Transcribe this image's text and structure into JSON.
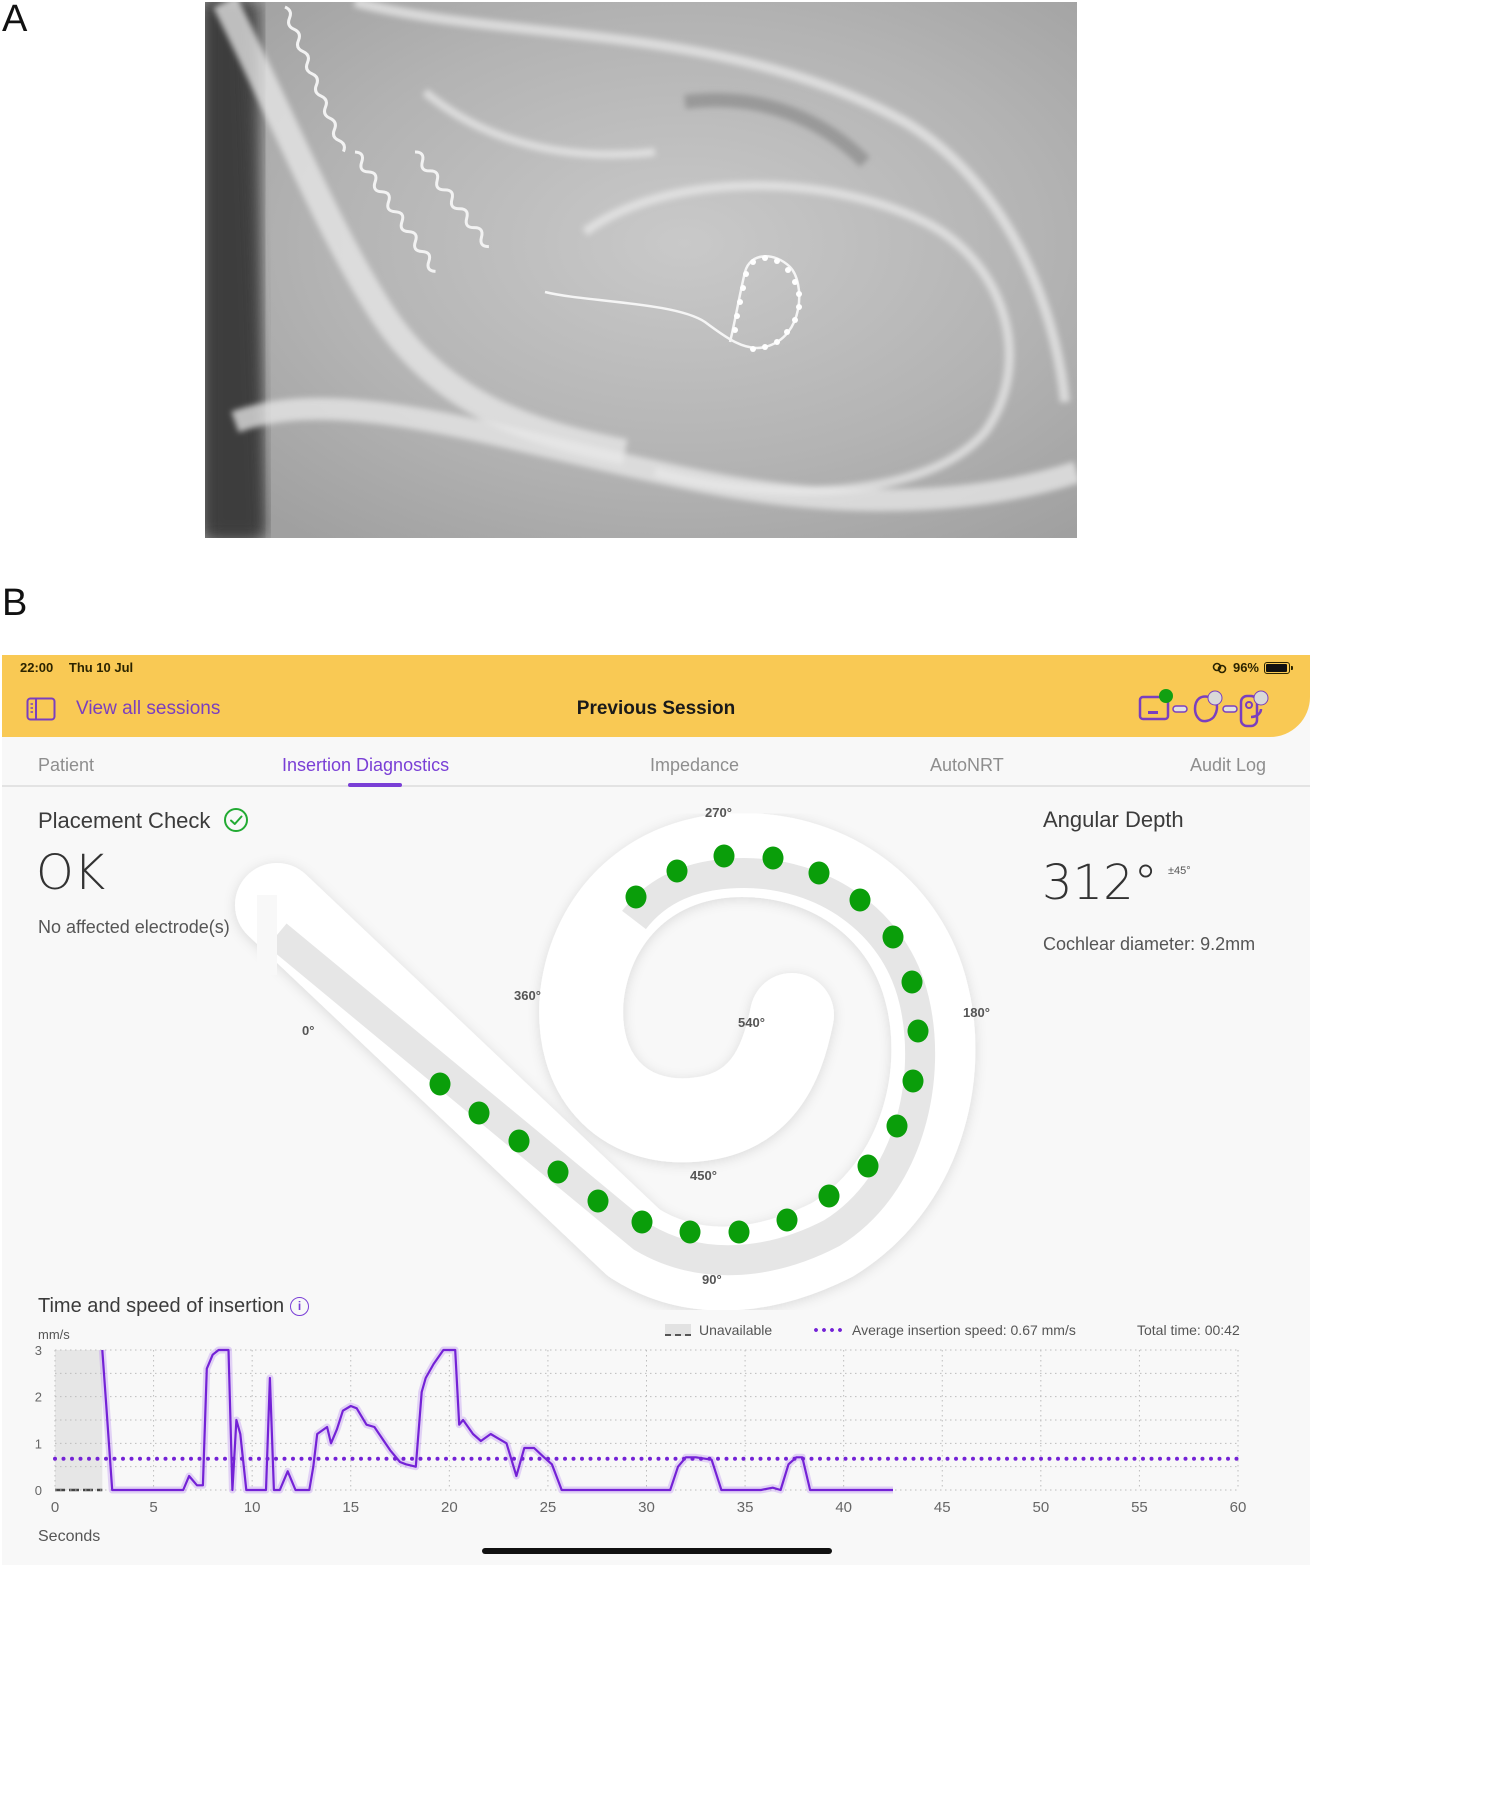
{
  "figure": {
    "panel_a_label": "A",
    "panel_b_label": "B",
    "panel_a_image": "cochlear-implant-xray-radiograph"
  },
  "status_bar": {
    "time": "22:00",
    "date": "Thu 10 Jul",
    "battery_percent": "96%",
    "battery_fill": 0.96,
    "icons": [
      "link-icon",
      "battery-icon"
    ]
  },
  "header": {
    "back_label": "View all sessions",
    "back_icon": "sidebar-toggle-icon",
    "title": "Previous Session",
    "device_chain": [
      {
        "name": "processor",
        "status": "connected",
        "status_color": "#12a012"
      },
      {
        "name": "implant",
        "status": "inactive",
        "status_color": "#d9d9d9"
      },
      {
        "name": "sound-processor-coil",
        "status": "inactive",
        "status_color": "#d9d9d9"
      }
    ],
    "background_color": "#f9c954",
    "accent_color": "#7a3fbf"
  },
  "tabs": [
    {
      "label": "Patient",
      "active": false
    },
    {
      "label": "Insertion Diagnostics",
      "active": true
    },
    {
      "label": "Impedance",
      "active": false
    },
    {
      "label": "AutoNRT",
      "active": false
    },
    {
      "label": "Audit Log",
      "active": false
    }
  ],
  "placement_check": {
    "title": "Placement Check",
    "status_icon": "check-circle-icon",
    "status_color": "#22aa33",
    "value": "OK",
    "detail": "No affected electrode(s)"
  },
  "angular_depth": {
    "title": "Angular Depth",
    "value": "312°",
    "tolerance": "±45°",
    "cochlear_diameter": "Cochlear diameter: 9.2mm"
  },
  "cochlea_diagram": {
    "angle_labels": {
      "a0": "0°",
      "a90": "90°",
      "a180": "180°",
      "a270": "270°",
      "a360": "360°",
      "a450": "450°",
      "a540": "540°"
    },
    "electrode_count": 22,
    "electrode_color": "#0a9e0a",
    "track_color": "#e6e6e6"
  },
  "insertion_chart": {
    "title": "Time and speed of insertion",
    "info_icon": "info-icon",
    "y_unit": "mm/s",
    "x_label": "Seconds",
    "legend_unavailable": "Unavailable",
    "legend_average": "Average insertion speed: 0.67 mm/s",
    "total_time": "Total time: 00:42",
    "line_color": "#7422d6"
  },
  "chart_data": {
    "type": "line",
    "title": "Time and speed of insertion",
    "xlabel": "Seconds",
    "ylabel": "mm/s",
    "xlim": [
      0,
      60
    ],
    "ylim": [
      0,
      3
    ],
    "x_ticks": [
      0,
      5,
      10,
      15,
      20,
      25,
      30,
      35,
      40,
      45,
      50,
      55,
      60
    ],
    "y_ticks": [
      0,
      1,
      2,
      3
    ],
    "grid": true,
    "grid_style": "dotted",
    "legend": [
      "Unavailable",
      "Average insertion speed: 0.67 mm/s"
    ],
    "legend_position": "top-right",
    "annotations": [
      "Total time: 00:42"
    ],
    "unavailable_region": [
      0,
      2.4
    ],
    "series": [
      {
        "name": "Insertion speed",
        "x": [
          2.4,
          2.6,
          2.9,
          6.5,
          6.8,
          7.2,
          7.5,
          7.7,
          8.0,
          8.3,
          8.8,
          9.0,
          9.2,
          9.4,
          9.7,
          9.9,
          10.2,
          10.7,
          10.9,
          11.1,
          11.4,
          11.8,
          12.2,
          12.9,
          13.1,
          13.3,
          13.8,
          14.0,
          14.3,
          14.6,
          15.0,
          15.3,
          15.8,
          16.2,
          17.0,
          17.5,
          17.8,
          18.3,
          18.6,
          18.8,
          19.2,
          19.7,
          20.3,
          20.5,
          20.7,
          21.2,
          21.6,
          22.1,
          22.5,
          22.9,
          23.4,
          23.8,
          24.3,
          24.8,
          25.2,
          25.7,
          26.0,
          26.5,
          30.0,
          31.2,
          31.6,
          32.0,
          32.5,
          33.3,
          33.8,
          34.2,
          35.8,
          36.4,
          36.8,
          37.2,
          37.6,
          37.9,
          38.3,
          42.5
        ],
        "y": [
          3.0,
          1.8,
          0.0,
          0.0,
          0.3,
          0.1,
          0.1,
          2.6,
          2.9,
          3.0,
          3.0,
          0.0,
          1.5,
          1.2,
          0.0,
          0.0,
          0.0,
          0.0,
          2.4,
          0.0,
          0.0,
          0.4,
          0.0,
          0.0,
          0.5,
          1.2,
          1.35,
          1.0,
          1.3,
          1.7,
          1.8,
          1.75,
          1.4,
          1.35,
          0.85,
          0.6,
          0.55,
          0.5,
          2.1,
          2.4,
          2.7,
          3.0,
          3.0,
          1.4,
          1.5,
          1.2,
          1.05,
          1.2,
          1.1,
          1.0,
          0.3,
          0.9,
          0.9,
          0.7,
          0.55,
          0.0,
          0.0,
          0.0,
          0.0,
          0.0,
          0.5,
          0.7,
          0.7,
          0.65,
          0.0,
          0.0,
          0.0,
          0.05,
          0.0,
          0.55,
          0.7,
          0.7,
          0.0,
          0.0
        ]
      },
      {
        "name": "Average insertion speed",
        "x": [
          0,
          60
        ],
        "y": [
          0.67,
          0.67
        ],
        "style": "dotted"
      }
    ]
  }
}
